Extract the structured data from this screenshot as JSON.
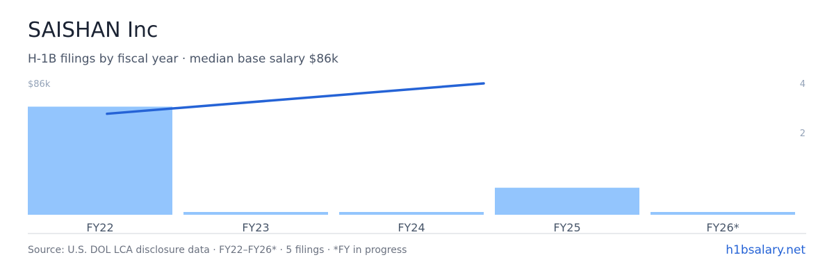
{
  "header": {
    "title": "SAISHAN Inc",
    "subtitle": "H-1B filings by fiscal year · median base salary $86k"
  },
  "footer": {
    "source": "Source: U.S. DOL LCA disclosure data · FY22–FY26* · 5 filings · *FY in progress",
    "brand": "h1bsalary.net"
  },
  "colors": {
    "bar": "#93c5fd",
    "line": "#2563d6",
    "axis_text": "#94a3b8",
    "tick_text": "#475569",
    "baseline": "#d1d5db"
  },
  "chart_data": {
    "type": "bar",
    "categories": [
      "FY22",
      "FY23",
      "FY24",
      "FY25",
      "FY26*"
    ],
    "series": [
      {
        "type": "bar",
        "axis": "right",
        "values": [
          4,
          0.1,
          0.1,
          1,
          0.1
        ]
      },
      {
        "type": "line",
        "axis": "left",
        "values": [
          null,
          null,
          null,
          null,
          null
        ],
        "line_start": 72,
        "line_end": 86,
        "line_span": [
          "FY22",
          "FY25"
        ]
      }
    ],
    "left_axis": {
      "label": "$86k",
      "max": 86
    },
    "right_axis": {
      "ticks": [
        "2",
        "4"
      ],
      "max": 4
    },
    "grid": false,
    "legend": "none"
  }
}
